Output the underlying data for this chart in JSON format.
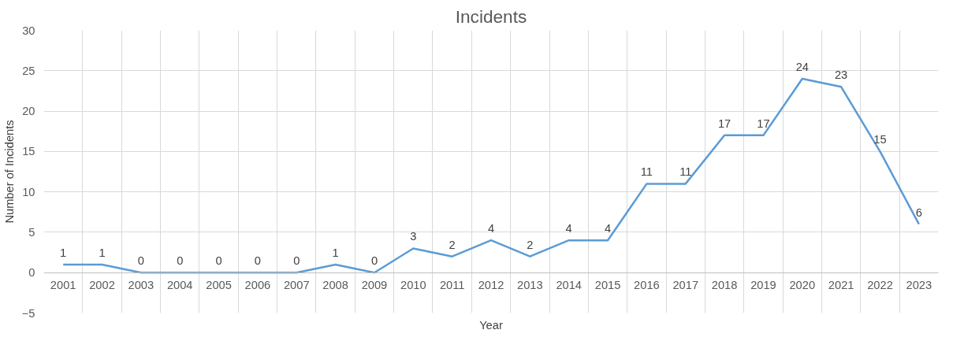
{
  "chart_data": {
    "type": "line",
    "title": "Incidents",
    "xlabel": "Year",
    "ylabel": "Number of Incidents",
    "categories": [
      "2001",
      "2002",
      "2003",
      "2004",
      "2005",
      "2006",
      "2007",
      "2008",
      "2009",
      "2010",
      "2011",
      "2012",
      "2013",
      "2014",
      "2015",
      "2016",
      "2017",
      "2018",
      "2019",
      "2020",
      "2021",
      "2022",
      "2023"
    ],
    "series": [
      {
        "color": "#5b9bd5",
        "values": [
          1,
          1,
          0,
          0,
          0,
          0,
          0,
          1,
          0,
          3,
          2,
          4,
          2,
          4,
          4,
          11,
          11,
          17,
          17,
          24,
          23,
          15,
          6
        ]
      }
    ],
    "ylim": [
      -5,
      30
    ],
    "yticks": [
      -5,
      0,
      5,
      10,
      15,
      20,
      25,
      30
    ],
    "grid": true,
    "data_labels": true,
    "marker": "none",
    "line_style": "solid"
  }
}
